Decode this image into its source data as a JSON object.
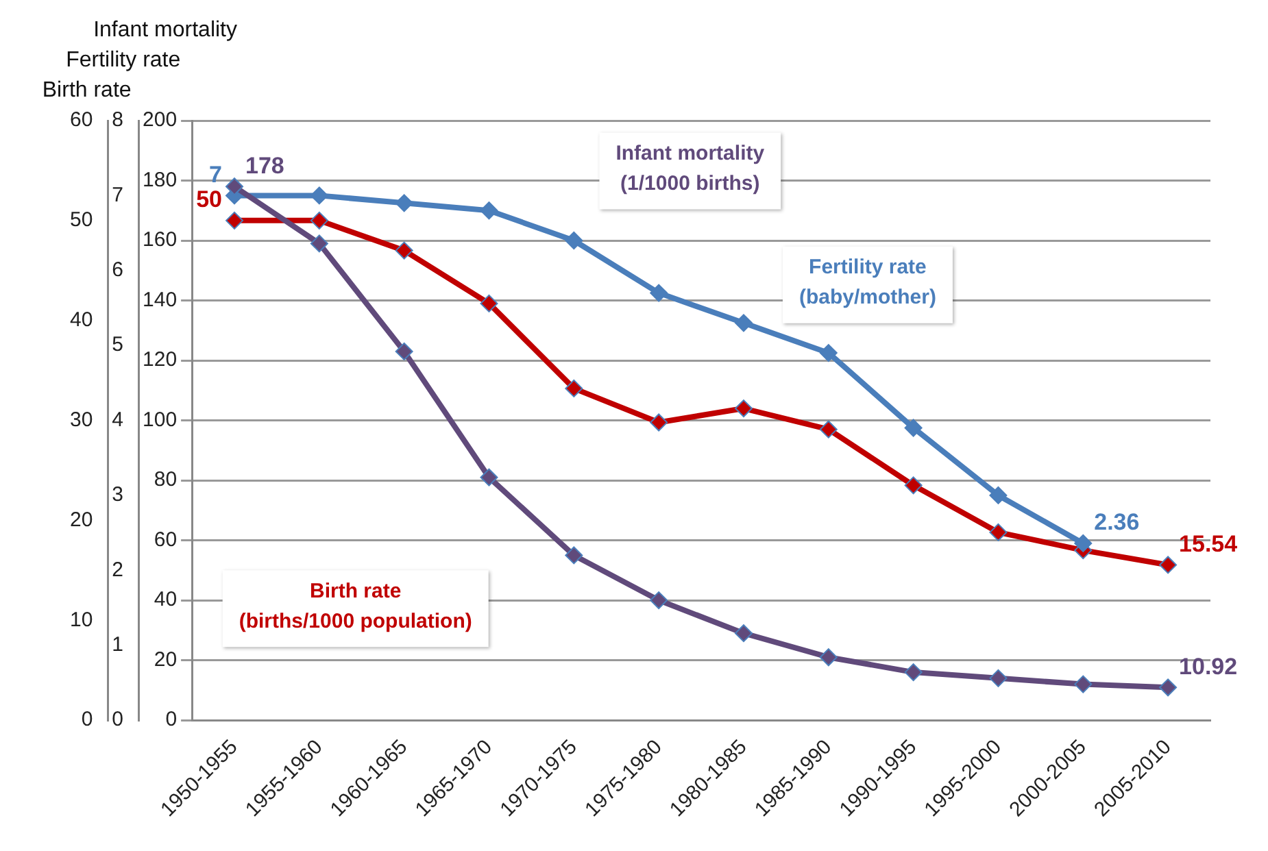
{
  "chart_data": {
    "type": "line",
    "categories": [
      "1950-1955",
      "1955-1960",
      "1960-1965",
      "1965-1970",
      "1970-1975",
      "1975-1980",
      "1980-1985",
      "1985-1990",
      "1990-1995",
      "1995-2000",
      "2000-2005",
      "2005-2010"
    ],
    "ylabel": "Infant mortality",
    "y2label": "Fertility rate",
    "y3label": "Birth rate",
    "ylim": [
      0,
      200
    ],
    "yticks": [
      0,
      20,
      40,
      60,
      80,
      100,
      120,
      140,
      160,
      180,
      200
    ],
    "y2lim": [
      0,
      8
    ],
    "y2ticks": [
      0,
      1,
      2,
      3,
      4,
      5,
      6,
      7,
      8
    ],
    "y3lim": [
      0,
      60
    ],
    "y3ticks": [
      0,
      10,
      20,
      30,
      40,
      50,
      60
    ],
    "grid": "y",
    "legend": false,
    "marker": "diamond",
    "line_style": "solid",
    "series": [
      {
        "name": "Infant mortality (1/1000 births)",
        "color": "#604a7b",
        "values": [
          178,
          159,
          123,
          81,
          55,
          40,
          29,
          21,
          16,
          14,
          12,
          10.92
        ],
        "value_labels": [
          "178",
          null,
          null,
          null,
          null,
          null,
          null,
          null,
          null,
          null,
          null,
          "10.92"
        ]
      },
      {
        "name": "Fertility rate (baby/mother)",
        "color": "#4a7ebb",
        "axis": "y2",
        "values": [
          7,
          7,
          6.9,
          6.8,
          6.4,
          5.7,
          5.3,
          4.9,
          3.9,
          3.0,
          2.36,
          null
        ],
        "value_labels": [
          "7",
          null,
          null,
          null,
          null,
          null,
          null,
          null,
          null,
          null,
          "2.36",
          null
        ]
      },
      {
        "name": "Birth rate (births/1000 population)",
        "color": "#c00000",
        "axis": "y3",
        "values": [
          50,
          50,
          47,
          41.7,
          33.2,
          29.8,
          31.2,
          29.1,
          23.5,
          18.8,
          17,
          15.54
        ],
        "value_labels": [
          "50",
          null,
          null,
          null,
          null,
          null,
          null,
          null,
          null,
          null,
          null,
          "15.54"
        ]
      }
    ]
  }
}
